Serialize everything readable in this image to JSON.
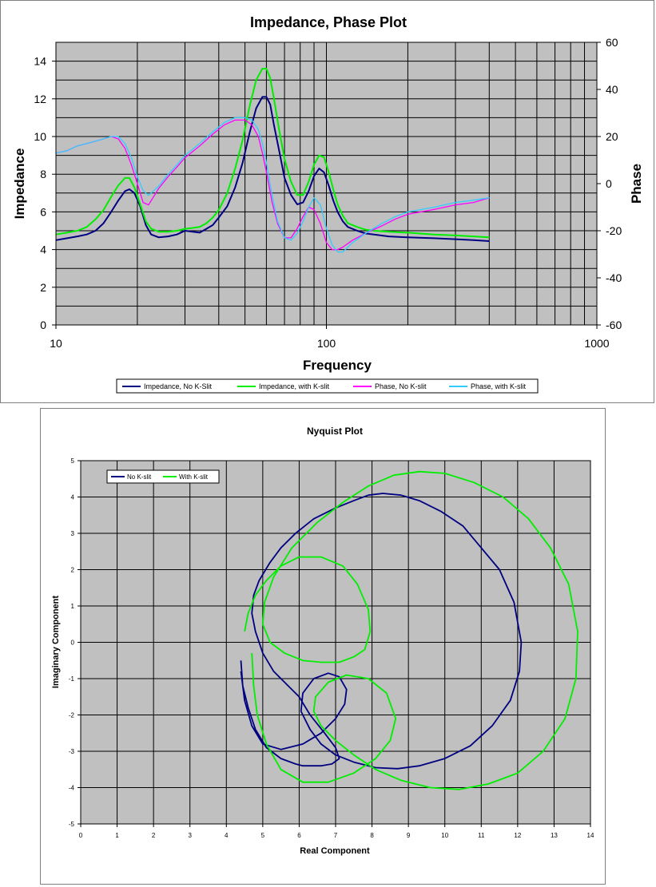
{
  "chart_data": [
    {
      "type": "line",
      "title": "Impedance, Phase Plot",
      "xlabel": "Frequency",
      "ylabel": "Impedance",
      "y2label": "Phase",
      "xscale": "log",
      "xlim": [
        10,
        1000
      ],
      "ylim": [
        0,
        15
      ],
      "y2lim": [
        -60,
        60
      ],
      "xticks": [
        "10",
        "100",
        "1000"
      ],
      "yticks": [
        "0",
        "2",
        "4",
        "6",
        "8",
        "10",
        "12",
        "14"
      ],
      "y2ticks": [
        "-60",
        "-40",
        "-20",
        "0",
        "20",
        "40",
        "60"
      ],
      "grid": true,
      "legend": "bottom",
      "series": [
        {
          "name": "Impedance, No K-Slit",
          "axis": "left",
          "color": "#000080",
          "x": [
            10,
            11,
            12,
            13,
            14,
            15,
            16,
            17,
            18,
            18.7,
            19.5,
            20.5,
            21.5,
            22.5,
            24,
            26,
            28,
            30,
            32,
            34,
            36,
            38,
            40,
            43,
            46,
            49,
            52,
            55,
            58,
            60,
            62,
            64,
            67,
            70,
            74,
            78,
            82,
            86,
            90,
            94,
            98,
            102,
            106,
            110,
            115,
            120,
            130,
            140,
            150,
            170,
            200,
            250,
            300,
            350,
            400
          ],
          "y": [
            4.5,
            4.6,
            4.7,
            4.8,
            5.0,
            5.4,
            6.0,
            6.6,
            7.1,
            7.2,
            7.0,
            6.3,
            5.3,
            4.8,
            4.65,
            4.7,
            4.8,
            5.0,
            4.95,
            4.9,
            5.1,
            5.3,
            5.7,
            6.3,
            7.3,
            8.6,
            10.2,
            11.5,
            12.1,
            12.1,
            11.7,
            10.6,
            9.2,
            7.8,
            6.9,
            6.4,
            6.5,
            7.1,
            7.9,
            8.3,
            8.1,
            7.4,
            6.6,
            6.0,
            5.5,
            5.2,
            5.0,
            4.85,
            4.8,
            4.7,
            4.65,
            4.6,
            4.55,
            4.5,
            4.45
          ]
        },
        {
          "name": "Impedance, with K-slit",
          "axis": "left",
          "color": "#00ee00",
          "x": [
            10,
            11,
            12,
            13,
            14,
            15,
            16,
            17,
            18,
            18.7,
            19.5,
            20.5,
            21.5,
            22.5,
            24,
            26,
            28,
            30,
            32,
            34,
            36,
            38,
            40,
            43,
            46,
            49,
            52,
            55,
            58,
            60,
            62,
            64,
            67,
            70,
            74,
            78,
            82,
            86,
            90,
            94,
            98,
            102,
            106,
            110,
            115,
            120,
            130,
            140,
            150,
            170,
            200,
            250,
            300,
            350,
            400
          ],
          "y": [
            4.8,
            4.9,
            5.0,
            5.2,
            5.6,
            6.1,
            6.8,
            7.4,
            7.8,
            7.8,
            7.3,
            6.4,
            5.5,
            5.1,
            4.95,
            4.95,
            5.0,
            5.1,
            5.15,
            5.2,
            5.4,
            5.7,
            6.1,
            7.0,
            8.3,
            9.8,
            11.6,
            13.0,
            13.6,
            13.6,
            13.1,
            12.0,
            10.3,
            8.8,
            7.6,
            6.9,
            6.9,
            7.6,
            8.5,
            9.0,
            8.9,
            8.1,
            7.2,
            6.4,
            5.8,
            5.4,
            5.2,
            5.05,
            5.0,
            4.95,
            4.9,
            4.8,
            4.75,
            4.7,
            4.65
          ]
        },
        {
          "name": "Phase, No K-slit",
          "axis": "right",
          "color": "#ff00ff",
          "x": [
            10,
            11,
            12,
            13,
            14,
            15,
            16,
            17,
            18,
            19,
            20,
            21,
            22,
            24,
            26,
            28,
            30,
            34,
            38,
            42,
            46,
            50,
            53,
            56,
            58,
            60,
            63,
            66,
            70,
            74,
            78,
            82,
            86,
            90,
            95,
            100,
            105,
            110,
            115,
            125,
            140,
            160,
            180,
            200,
            250,
            300,
            350,
            400
          ],
          "y": [
            13,
            14,
            16,
            17,
            18,
            19,
            20,
            19,
            15,
            8,
            0,
            -8,
            -9,
            -2,
            3,
            7,
            11,
            16,
            21,
            25,
            27,
            27,
            25,
            20,
            13,
            5,
            -8,
            -17,
            -23,
            -23,
            -19,
            -14,
            -10,
            -11,
            -17,
            -25,
            -28,
            -28,
            -27,
            -24,
            -21,
            -18,
            -15,
            -13,
            -11,
            -9,
            -8,
            -6
          ]
        },
        {
          "name": "Phase, with K-slit",
          "axis": "right",
          "color": "#33ccff",
          "x": [
            10,
            11,
            12,
            13,
            14,
            15,
            16,
            17,
            18,
            19,
            20,
            21,
            22,
            24,
            26,
            28,
            30,
            34,
            38,
            42,
            46,
            50,
            53,
            56,
            58,
            60,
            63,
            66,
            70,
            74,
            78,
            82,
            86,
            90,
            95,
            100,
            105,
            110,
            115,
            125,
            140,
            160,
            180,
            200,
            250,
            300,
            350,
            400
          ],
          "y": [
            13,
            14,
            16,
            17,
            18,
            19,
            20,
            20,
            17,
            11,
            3,
            -3,
            -5,
            -1,
            4,
            8,
            12,
            17,
            22,
            26,
            28,
            28,
            27,
            23,
            17,
            9,
            -5,
            -16,
            -23,
            -24,
            -21,
            -16,
            -10,
            -6,
            -9,
            -19,
            -26,
            -29,
            -29,
            -25,
            -21,
            -17,
            -14,
            -12,
            -10,
            -8,
            -7,
            -6
          ]
        }
      ]
    },
    {
      "type": "line",
      "title": "Nyquist Plot",
      "xlabel": "Real Component",
      "ylabel": "Imaginary Component",
      "xlim": [
        0,
        14
      ],
      "ylim": [
        -5,
        5
      ],
      "xticks": [
        "0",
        "1",
        "2",
        "3",
        "4",
        "5",
        "6",
        "7",
        "8",
        "9",
        "10",
        "11",
        "12",
        "13",
        "14"
      ],
      "yticks": [
        "-5",
        "-4",
        "-3",
        "-2",
        "-1",
        "0",
        "1",
        "2",
        "3",
        "4",
        "5"
      ],
      "grid": true,
      "legend": "top-left",
      "series": [
        {
          "name": "No K-slit",
          "color": "#000080",
          "x": [
            4.4,
            4.45,
            4.6,
            4.8,
            5.1,
            5.5,
            5.9,
            6.1,
            6.3,
            6.6,
            6.9,
            7.1,
            7.0,
            6.7,
            6.3,
            6.0,
            5.5,
            5.3,
            5.0,
            4.8,
            4.7,
            4.75,
            4.9,
            5.2,
            5.5,
            5.9,
            6.4,
            7.0,
            7.5,
            7.9,
            8.3,
            8.8,
            9.3,
            9.9,
            10.5,
            11.0,
            11.5,
            11.9,
            12.1,
            12.05,
            11.8,
            11.3,
            10.7,
            10.0,
            9.3,
            8.7,
            8.1,
            7.5,
            7.0,
            6.6,
            6.3,
            6.05,
            6.1,
            6.4,
            6.8,
            7.1,
            7.3,
            7.25,
            7.0,
            6.6,
            6.1,
            5.5,
            5.0,
            4.7,
            4.5,
            4.4
          ],
          "y": [
            -0.5,
            -1.2,
            -1.8,
            -2.4,
            -2.9,
            -3.2,
            -3.35,
            -3.4,
            -3.4,
            -3.4,
            -3.35,
            -3.2,
            -2.9,
            -2.5,
            -2.0,
            -1.5,
            -1.0,
            -0.8,
            -0.3,
            0.3,
            0.8,
            1.3,
            1.7,
            2.2,
            2.6,
            3.0,
            3.4,
            3.7,
            3.9,
            4.05,
            4.1,
            4.05,
            3.9,
            3.6,
            3.2,
            2.6,
            2.0,
            1.1,
            0.0,
            -0.8,
            -1.6,
            -2.3,
            -2.85,
            -3.2,
            -3.4,
            -3.48,
            -3.45,
            -3.3,
            -3.1,
            -2.8,
            -2.4,
            -1.9,
            -1.4,
            -1.0,
            -0.85,
            -0.95,
            -1.3,
            -1.7,
            -2.1,
            -2.5,
            -2.8,
            -2.95,
            -2.8,
            -2.3,
            -1.6,
            -0.8
          ]
        },
        {
          "name": "With K-slit",
          "color": "#00ee00",
          "x": [
            4.5,
            4.6,
            4.8,
            5.1,
            5.5,
            6.0,
            6.6,
            7.2,
            7.6,
            7.9,
            7.95,
            7.8,
            7.5,
            7.1,
            6.6,
            6.1,
            5.6,
            5.2,
            5.0,
            5.05,
            5.3,
            5.8,
            6.5,
            7.2,
            7.9,
            8.6,
            9.3,
            10.0,
            10.8,
            11.6,
            12.3,
            12.9,
            13.4,
            13.65,
            13.6,
            13.3,
            12.7,
            12.0,
            11.2,
            10.4,
            9.6,
            8.8,
            8.1,
            7.5,
            7.0,
            6.6,
            6.4,
            6.45,
            6.8,
            7.3,
            7.9,
            8.4,
            8.65,
            8.5,
            8.1,
            7.5,
            6.8,
            6.1,
            5.5,
            5.1,
            4.85,
            4.75,
            4.7
          ],
          "y": [
            0.3,
            0.8,
            1.3,
            1.7,
            2.1,
            2.35,
            2.35,
            2.1,
            1.6,
            0.9,
            0.3,
            -0.2,
            -0.4,
            -0.55,
            -0.55,
            -0.5,
            -0.3,
            0.0,
            0.5,
            1.1,
            1.8,
            2.6,
            3.3,
            3.85,
            4.3,
            4.6,
            4.7,
            4.65,
            4.4,
            4.0,
            3.4,
            2.6,
            1.6,
            0.3,
            -1.0,
            -2.1,
            -3.0,
            -3.6,
            -3.9,
            -4.05,
            -4.0,
            -3.8,
            -3.5,
            -3.1,
            -2.7,
            -2.3,
            -1.9,
            -1.5,
            -1.1,
            -0.9,
            -1.0,
            -1.4,
            -2.1,
            -2.7,
            -3.2,
            -3.6,
            -3.85,
            -3.85,
            -3.5,
            -2.8,
            -2.0,
            -1.2,
            -0.3
          ]
        }
      ]
    }
  ]
}
